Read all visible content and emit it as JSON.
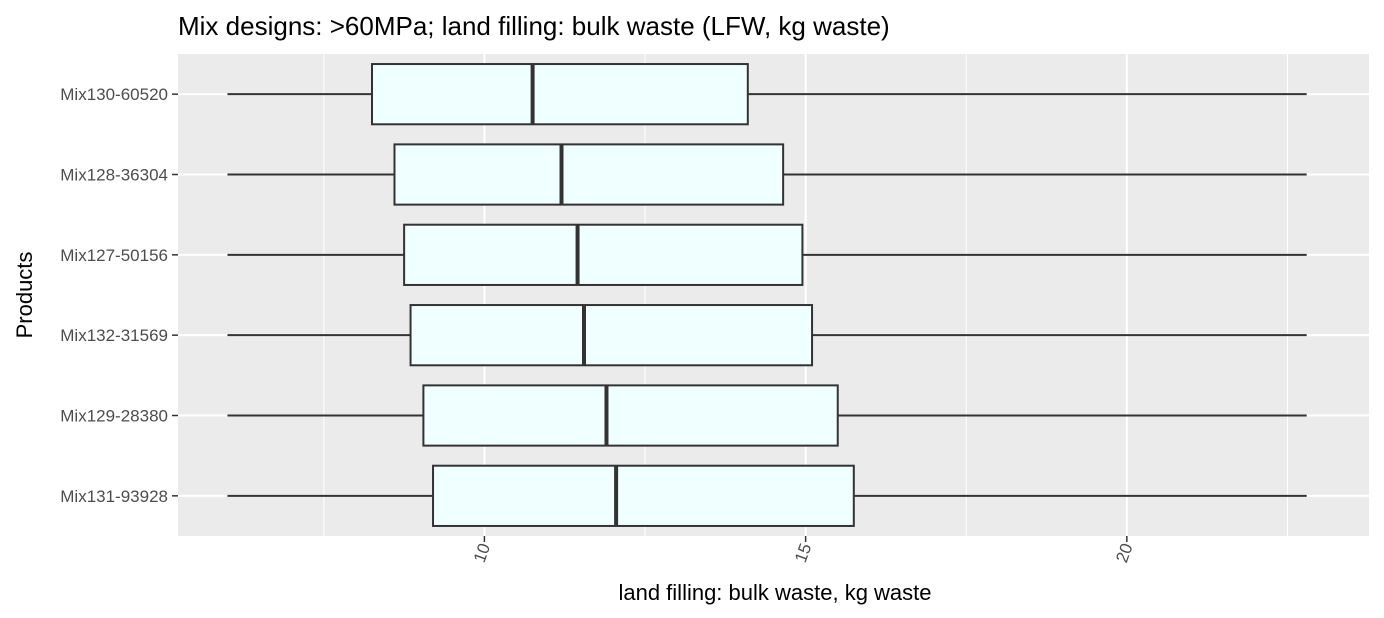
{
  "chart_data": {
    "type": "boxplot",
    "orientation": "horizontal",
    "title": "Mix designs: >60MPa; land filling: bulk waste (LFW, kg waste)",
    "xlabel": "land filling: bulk waste, kg waste",
    "ylabel": "Products",
    "xlim": [
      5.23,
      23.77
    ],
    "xticks": [
      10,
      15,
      20
    ],
    "xtick_labels": [
      "10",
      "15",
      "20"
    ],
    "minor_xticks": [
      7.5,
      12.5,
      17.5,
      22.5
    ],
    "xtick_label_rotation": -70,
    "grid": true,
    "colors": {
      "panel": "#ebebeb",
      "gridline": "#ffffff",
      "box_fill": "#f0ffff",
      "box_stroke": "#333333"
    },
    "categories": [
      "Mix130-60520",
      "Mix128-36304",
      "Mix127-50156",
      "Mix132-31569",
      "Mix129-28380",
      "Mix131-93928"
    ],
    "series": [
      {
        "category": "Mix130-60520",
        "min": 6.0,
        "q1": 8.25,
        "median": 10.75,
        "q3": 14.1,
        "max": 22.8
      },
      {
        "category": "Mix128-36304",
        "min": 6.0,
        "q1": 8.6,
        "median": 11.2,
        "q3": 14.65,
        "max": 22.8
      },
      {
        "category": "Mix127-50156",
        "min": 6.0,
        "q1": 8.75,
        "median": 11.45,
        "q3": 14.95,
        "max": 22.8
      },
      {
        "category": "Mix132-31569",
        "min": 6.0,
        "q1": 8.85,
        "median": 11.55,
        "q3": 15.1,
        "max": 22.8
      },
      {
        "category": "Mix129-28380",
        "min": 6.0,
        "q1": 9.05,
        "median": 11.9,
        "q3": 15.5,
        "max": 22.8
      },
      {
        "category": "Mix131-93928",
        "min": 6.0,
        "q1": 9.2,
        "median": 12.05,
        "q3": 15.75,
        "max": 22.8
      }
    ]
  }
}
